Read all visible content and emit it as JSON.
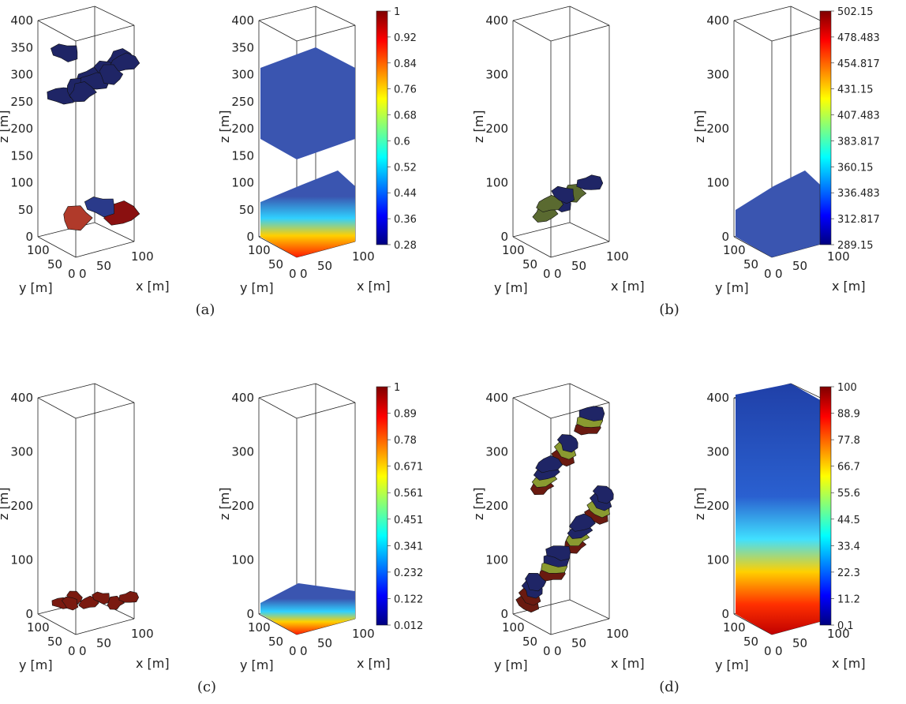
{
  "axes": {
    "z_ticks_400": [
      "0",
      "50",
      "100",
      "150",
      "200",
      "250",
      "300",
      "350",
      "400"
    ],
    "z_ticks_100": [
      "0",
      "100",
      "200",
      "300",
      "400"
    ],
    "xy_ticks": [
      "0",
      "50",
      "100"
    ],
    "xlabel": "x [m]",
    "ylabel": "y [m]",
    "zlabel": "z [m]"
  },
  "colorbars": {
    "a": [
      "1",
      "0.92",
      "0.84",
      "0.76",
      "0.68",
      "0.6",
      "0.52",
      "0.44",
      "0.36",
      "0.28"
    ],
    "b": [
      "502.15",
      "478.483",
      "454.817",
      "431.15",
      "407.483",
      "383.817",
      "360.15",
      "336.483",
      "312.817",
      "289.15"
    ],
    "c": [
      "1",
      "0.89",
      "0.78",
      "0.671",
      "0.561",
      "0.451",
      "0.341",
      "0.232",
      "0.122",
      "0.012"
    ],
    "d": [
      "100",
      "88.9",
      "77.8",
      "66.7",
      "55.6",
      "44.5",
      "33.4",
      "22.3",
      "11.2",
      "0.1"
    ]
  },
  "panel_labels": [
    "(a)",
    "(b)",
    "(c)",
    "(d)"
  ],
  "colors": {
    "jet": [
      "#00007f",
      "#0000ff",
      "#007fff",
      "#00ffff",
      "#7fff7f",
      "#ffff00",
      "#ff7f00",
      "#ff0000",
      "#7f0000"
    ],
    "dark_fracture": "#1a1f5a",
    "volume_blue": "#3a55b0"
  }
}
